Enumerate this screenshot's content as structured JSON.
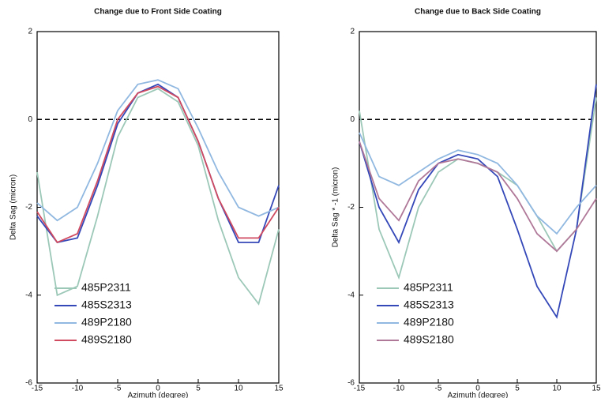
{
  "chart_data": [
    {
      "type": "line",
      "title": "Change due to Front Side Coating",
      "xlabel": "Azimuth (degree)",
      "ylabel": "Delta Sag (micron)",
      "x": [
        -15,
        -12.5,
        -10,
        -7.5,
        -5,
        -2.5,
        0,
        2.5,
        5,
        7.5,
        10,
        12.5,
        15
      ],
      "xlim": [
        -15,
        15
      ],
      "xticks": [
        -15,
        -10,
        -5,
        0,
        5,
        10,
        15
      ],
      "ylim": [
        -6,
        2
      ],
      "yticks": [
        -6,
        -4,
        -2,
        0,
        2
      ],
      "hline": 0,
      "series": [
        {
          "name": "485P2311",
          "color": "#9cc8b8",
          "values": [
            -1.2,
            -4.0,
            -3.8,
            -2.2,
            -0.4,
            0.5,
            0.7,
            0.4,
            -0.6,
            -2.3,
            -3.6,
            -4.2,
            -2.5
          ]
        },
        {
          "name": "485S2313",
          "color": "#3548b8",
          "values": [
            -2.2,
            -2.8,
            -2.7,
            -1.5,
            -0.1,
            0.6,
            0.8,
            0.5,
            -0.5,
            -1.8,
            -2.8,
            -2.8,
            -1.5
          ]
        },
        {
          "name": "489P2180",
          "color": "#90b8e0",
          "values": [
            -1.9,
            -2.3,
            -2.0,
            -1.0,
            0.2,
            0.8,
            0.9,
            0.7,
            -0.2,
            -1.2,
            -2.0,
            -2.2,
            -2.0
          ]
        },
        {
          "name": "489S2180",
          "color": "#d04a60",
          "values": [
            -2.1,
            -2.8,
            -2.6,
            -1.4,
            0.0,
            0.6,
            0.75,
            0.5,
            -0.5,
            -1.8,
            -2.7,
            -2.7,
            -2.0
          ]
        }
      ]
    },
    {
      "type": "line",
      "title": "Change due to Back Side Coating",
      "xlabel": "Azimuth (degree)",
      "ylabel": "Delta Sag * -1 (micron)",
      "x": [
        -15,
        -12.5,
        -10,
        -7.5,
        -5,
        -2.5,
        0,
        2.5,
        5,
        7.5,
        10,
        12.5,
        15
      ],
      "xlim": [
        -15,
        15
      ],
      "xticks": [
        -15,
        -10,
        -5,
        0,
        5,
        10,
        15
      ],
      "ylim": [
        -6,
        2
      ],
      "yticks": [
        -6,
        -4,
        -2,
        0,
        2
      ],
      "hline": 0,
      "series": [
        {
          "name": "485P2311",
          "color": "#9cc8b8",
          "values": [
            0.2,
            -2.5,
            -3.6,
            -2.0,
            -1.2,
            -0.9,
            -1.0,
            -1.2,
            -1.5,
            -2.2,
            -3.0,
            -2.5,
            0.5
          ]
        },
        {
          "name": "485S2313",
          "color": "#3548b8",
          "values": [
            -0.5,
            -2.0,
            -2.8,
            -1.6,
            -1.0,
            -0.8,
            -0.9,
            -1.3,
            -2.5,
            -3.8,
            -4.5,
            -2.5,
            0.8
          ]
        },
        {
          "name": "489P2180",
          "color": "#90b8e0",
          "values": [
            -0.3,
            -1.3,
            -1.5,
            -1.2,
            -0.9,
            -0.7,
            -0.8,
            -1.0,
            -1.5,
            -2.2,
            -2.6,
            -2.0,
            -1.5
          ]
        },
        {
          "name": "489S2180",
          "color": "#b07898",
          "values": [
            -0.5,
            -1.8,
            -2.3,
            -1.4,
            -1.0,
            -0.9,
            -1.0,
            -1.2,
            -1.8,
            -2.6,
            -3.0,
            -2.5,
            -1.8
          ]
        }
      ]
    }
  ]
}
